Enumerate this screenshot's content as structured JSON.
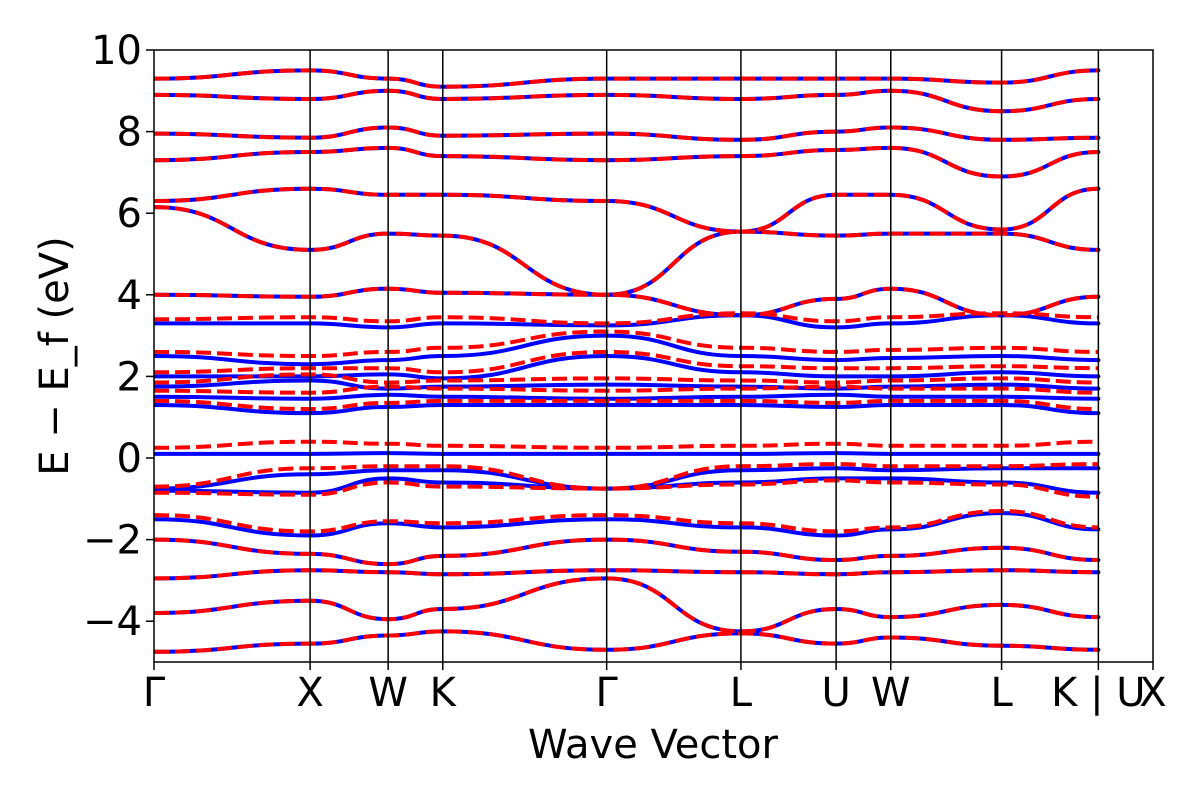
{
  "chart_data": {
    "type": "line",
    "xlabel": "Wave Vector",
    "ylabel": "E − E_f (eV)",
    "ylim": [
      -5,
      10
    ],
    "y_ticks": [
      {
        "value": -4,
        "label": "−4"
      },
      {
        "value": -2,
        "label": "−2"
      },
      {
        "value": 0,
        "label": "0"
      },
      {
        "value": 2,
        "label": "2"
      },
      {
        "value": 4,
        "label": "4"
      },
      {
        "value": 6,
        "label": "6"
      },
      {
        "value": 8,
        "label": "8"
      },
      {
        "value": 10,
        "label": "10"
      }
    ],
    "x_ticks": [
      {
        "position": 0.0,
        "label": "Γ"
      },
      {
        "position": 1.0,
        "label": "X"
      },
      {
        "position": 1.5,
        "label": "W"
      },
      {
        "position": 1.85,
        "label": "K"
      },
      {
        "position": 2.9,
        "label": "Γ"
      },
      {
        "position": 3.76,
        "label": "L"
      },
      {
        "position": 4.37,
        "label": "U"
      },
      {
        "position": 4.72,
        "label": "W"
      },
      {
        "position": 5.43,
        "label": "L"
      },
      {
        "position": 6.05,
        "label": "K | U"
      },
      {
        "position": 6.4,
        "label": "X"
      }
    ],
    "vlines": [
      1.0,
      1.5,
      1.85,
      2.9,
      3.76,
      4.37,
      4.72,
      5.43,
      6.05
    ],
    "series": [
      {
        "style": "solid",
        "color": "#0000ff",
        "bands": [
          [
            -4.75,
            -4.55,
            -4.35,
            -4.25,
            -4.7,
            -4.3,
            -4.55,
            -4.4,
            -4.6,
            -4.7
          ],
          [
            -3.8,
            -3.5,
            -3.95,
            -3.7,
            -2.95,
            -4.25,
            -3.7,
            -3.9,
            -3.6,
            -3.9
          ],
          [
            -2.95,
            -2.75,
            -2.8,
            -2.85,
            -2.75,
            -2.8,
            -2.85,
            -2.8,
            -2.75,
            -2.8
          ],
          [
            -2.0,
            -2.35,
            -2.6,
            -2.4,
            -2.0,
            -2.3,
            -2.5,
            -2.4,
            -2.2,
            -2.5
          ],
          [
            -1.5,
            -1.9,
            -1.6,
            -1.7,
            -1.5,
            -1.7,
            -1.9,
            -1.75,
            -1.35,
            -1.75
          ],
          [
            -0.8,
            -0.85,
            -0.5,
            -0.6,
            -0.75,
            -0.6,
            -0.5,
            -0.5,
            -0.6,
            -0.85
          ],
          [
            -0.75,
            -0.4,
            -0.3,
            -0.3,
            -0.75,
            -0.3,
            -0.25,
            -0.3,
            -0.25,
            -0.25
          ],
          [
            0.1,
            0.1,
            0.12,
            0.1,
            0.1,
            0.1,
            0.12,
            0.1,
            0.1,
            0.1
          ],
          [
            1.3,
            1.1,
            1.25,
            1.3,
            1.3,
            1.3,
            1.25,
            1.3,
            1.3,
            1.1
          ],
          [
            1.5,
            1.45,
            1.55,
            1.5,
            1.45,
            1.5,
            1.55,
            1.5,
            1.5,
            1.45
          ],
          [
            1.75,
            1.9,
            1.7,
            1.75,
            1.8,
            1.75,
            1.7,
            1.75,
            1.8,
            1.7
          ],
          [
            2.0,
            2.0,
            2.05,
            1.95,
            2.5,
            2.1,
            2.0,
            2.0,
            2.1,
            2.0
          ],
          [
            2.5,
            2.3,
            2.4,
            2.5,
            3.0,
            2.5,
            2.4,
            2.45,
            2.5,
            2.4
          ],
          [
            3.3,
            3.3,
            3.2,
            3.3,
            3.25,
            3.5,
            3.2,
            3.3,
            3.5,
            3.3
          ],
          [
            4.0,
            3.95,
            4.15,
            4.05,
            4.0,
            3.5,
            3.9,
            4.15,
            3.5,
            3.95
          ],
          [
            6.15,
            5.1,
            5.5,
            5.45,
            4.0,
            5.55,
            5.45,
            5.5,
            5.5,
            5.1
          ],
          [
            6.3,
            6.6,
            6.45,
            6.45,
            6.3,
            5.55,
            6.45,
            6.45,
            5.6,
            6.6
          ],
          [
            7.3,
            7.5,
            7.6,
            7.4,
            7.3,
            7.4,
            7.55,
            7.6,
            6.9,
            7.5
          ],
          [
            7.95,
            7.85,
            8.1,
            7.9,
            7.95,
            7.8,
            8.0,
            8.1,
            7.8,
            7.85
          ],
          [
            8.9,
            8.8,
            9.0,
            8.8,
            8.9,
            8.8,
            8.9,
            9.0,
            8.5,
            8.8
          ],
          [
            9.3,
            9.5,
            9.3,
            9.1,
            9.3,
            9.3,
            9.3,
            9.3,
            9.2,
            9.5
          ]
        ]
      },
      {
        "style": "dashed",
        "color": "#ff0000",
        "bands": [
          [
            -4.75,
            -4.55,
            -4.35,
            -4.25,
            -4.7,
            -4.3,
            -4.55,
            -4.4,
            -4.6,
            -4.7
          ],
          [
            -3.8,
            -3.5,
            -3.95,
            -3.7,
            -2.95,
            -4.25,
            -3.7,
            -3.9,
            -3.6,
            -3.9
          ],
          [
            -2.95,
            -2.75,
            -2.8,
            -2.85,
            -2.75,
            -2.8,
            -2.85,
            -2.8,
            -2.75,
            -2.8
          ],
          [
            -2.0,
            -2.35,
            -2.6,
            -2.4,
            -2.0,
            -2.3,
            -2.5,
            -2.4,
            -2.2,
            -2.5
          ],
          [
            -1.4,
            -1.8,
            -1.55,
            -1.6,
            -1.4,
            -1.6,
            -1.8,
            -1.7,
            -1.3,
            -1.7
          ],
          [
            -0.85,
            -0.9,
            -0.6,
            -0.7,
            -0.75,
            -0.65,
            -0.55,
            -0.6,
            -0.65,
            -0.95
          ],
          [
            -0.7,
            -0.25,
            -0.2,
            -0.2,
            -0.75,
            -0.2,
            -0.15,
            -0.2,
            -0.2,
            -0.15
          ],
          [
            0.25,
            0.4,
            0.35,
            0.3,
            0.25,
            0.3,
            0.35,
            0.3,
            0.3,
            0.4
          ],
          [
            1.4,
            1.2,
            1.35,
            1.4,
            1.4,
            1.4,
            1.35,
            1.4,
            1.4,
            1.2
          ],
          [
            1.65,
            1.6,
            1.75,
            1.7,
            1.65,
            1.7,
            1.75,
            1.7,
            1.7,
            1.6
          ],
          [
            1.85,
            2.05,
            1.85,
            1.9,
            1.95,
            1.9,
            1.85,
            1.9,
            1.95,
            1.85
          ],
          [
            2.1,
            2.2,
            2.2,
            2.1,
            2.6,
            2.25,
            2.2,
            2.2,
            2.25,
            2.2
          ],
          [
            2.6,
            2.5,
            2.6,
            2.7,
            3.1,
            2.7,
            2.6,
            2.65,
            2.7,
            2.6
          ],
          [
            3.4,
            3.45,
            3.35,
            3.45,
            3.3,
            3.55,
            3.35,
            3.45,
            3.55,
            3.45
          ],
          [
            4.0,
            3.95,
            4.15,
            4.05,
            4.0,
            3.5,
            3.9,
            4.15,
            3.5,
            3.95
          ],
          [
            6.15,
            5.1,
            5.5,
            5.45,
            4.0,
            5.55,
            5.45,
            5.5,
            5.5,
            5.1
          ],
          [
            6.3,
            6.6,
            6.45,
            6.45,
            6.3,
            5.55,
            6.45,
            6.45,
            5.6,
            6.6
          ],
          [
            7.3,
            7.5,
            7.6,
            7.4,
            7.3,
            7.4,
            7.55,
            7.6,
            6.9,
            7.5
          ],
          [
            7.95,
            7.85,
            8.1,
            7.9,
            7.95,
            7.8,
            8.0,
            8.1,
            7.8,
            7.85
          ],
          [
            8.9,
            8.8,
            9.0,
            8.8,
            8.9,
            8.8,
            8.9,
            9.0,
            8.5,
            8.8
          ],
          [
            9.3,
            9.5,
            9.3,
            9.1,
            9.3,
            9.3,
            9.3,
            9.3,
            9.2,
            9.5
          ]
        ]
      }
    ]
  }
}
